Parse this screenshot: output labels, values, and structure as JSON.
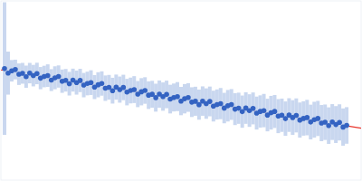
{
  "chart_data": {
    "type": "scatter",
    "xlim": [
      0,
      400
    ],
    "ylim": [
      0,
      10
    ],
    "tick_labels": false,
    "grid": false,
    "series": [
      {
        "type": "scatter",
        "color": "#3463c2",
        "marker": "circle",
        "x": [
          4,
          8,
          12,
          16,
          20,
          24,
          28,
          32,
          36,
          40,
          44,
          48,
          52,
          56,
          60,
          64,
          68,
          72,
          76,
          80,
          84,
          88,
          92,
          96,
          100,
          104,
          108,
          112,
          116,
          120,
          124,
          128,
          132,
          136,
          140,
          144,
          148,
          152,
          156,
          160,
          164,
          168,
          172,
          176,
          180,
          184,
          188,
          192,
          196,
          200,
          204,
          208,
          212,
          216,
          220,
          224,
          228,
          232,
          236,
          240,
          244,
          248,
          252,
          256,
          260,
          264,
          268,
          272,
          276,
          280,
          284,
          288,
          292,
          296,
          300,
          304,
          308,
          312,
          316,
          320,
          324,
          328,
          332,
          336,
          340,
          344,
          348,
          352,
          356,
          360,
          364,
          368,
          372,
          376,
          380,
          384
        ],
        "values": [
          6.22,
          5.97,
          6.1,
          6.17,
          5.91,
          5.96,
          5.77,
          5.97,
          5.83,
          5.95,
          5.69,
          5.78,
          5.83,
          5.58,
          5.71,
          5.78,
          5.52,
          5.57,
          5.38,
          5.58,
          5.44,
          5.56,
          5.3,
          5.39,
          5.44,
          5.19,
          5.32,
          5.39,
          5.13,
          5.18,
          4.99,
          5.19,
          5.05,
          5.17,
          4.91,
          5.0,
          5.05,
          4.8,
          4.93,
          5.0,
          4.74,
          4.79,
          4.6,
          4.8,
          4.66,
          4.78,
          4.52,
          4.61,
          4.66,
          4.41,
          4.54,
          4.61,
          4.35,
          4.4,
          4.21,
          4.41,
          4.27,
          4.39,
          4.13,
          4.22,
          4.27,
          4.02,
          4.15,
          4.22,
          3.96,
          4.01,
          3.82,
          4.02,
          3.88,
          4.0,
          3.74,
          3.83,
          3.88,
          3.63,
          3.76,
          3.83,
          3.57,
          3.62,
          3.43,
          3.63,
          3.49,
          3.61,
          3.35,
          3.44,
          3.49,
          3.24,
          3.37,
          3.44,
          3.18,
          3.23,
          3.04,
          3.24,
          3.1,
          3.22,
          2.96,
          3.05
        ],
        "errors": [
          3.7,
          1.2,
          0.6,
          0.55,
          0.6,
          0.58,
          0.62,
          0.57,
          0.6,
          0.6,
          0.62,
          0.6,
          0.63,
          0.61,
          0.64,
          0.62,
          0.65,
          0.63,
          0.66,
          0.64,
          0.67,
          0.65,
          0.68,
          0.66,
          0.69,
          0.67,
          0.7,
          0.68,
          0.71,
          0.69,
          0.72,
          0.7,
          0.73,
          0.71,
          0.74,
          0.72,
          0.75,
          0.73,
          0.76,
          0.74,
          0.77,
          0.75,
          0.78,
          0.76,
          0.79,
          0.77,
          0.8,
          0.78,
          0.81,
          0.79,
          0.82,
          0.8,
          0.83,
          0.81,
          0.84,
          0.82,
          0.85,
          0.83,
          0.86,
          0.84,
          0.87,
          0.85,
          0.88,
          0.86,
          0.89,
          0.87,
          0.9,
          0.88,
          0.91,
          0.89,
          0.92,
          0.9,
          0.93,
          0.91,
          0.94,
          0.92,
          0.95,
          0.93,
          0.96,
          0.94,
          0.97,
          0.95,
          0.98,
          0.96,
          0.99,
          0.97,
          1.0,
          0.98,
          1.01,
          0.99,
          1.02,
          1.0,
          1.03,
          1.01,
          1.04,
          1.02
        ]
      },
      {
        "type": "line",
        "color": "#e8332a",
        "line_style": "solid",
        "x": [
          0,
          400
        ],
        "values": [
          6.15,
          2.9
        ]
      }
    ]
  }
}
